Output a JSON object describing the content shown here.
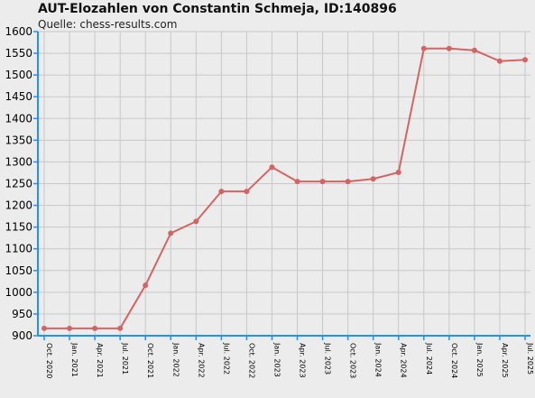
{
  "title": "AUT-Elozahlen von Constantin Schmeja, ID:140896",
  "subtitle": "Quelle: chess-results.com",
  "colors": {
    "line": "#d46464",
    "axis": "#1e90ff",
    "grid": "#c8c8c8",
    "background": "#ececec"
  },
  "chart_data": {
    "type": "line",
    "title": "AUT-Elozahlen von Constantin Schmeja, ID:140896",
    "subtitle": "Quelle: chess-results.com",
    "xlabel": "",
    "ylabel": "",
    "ylim": [
      900,
      1600
    ],
    "ytick_step": 50,
    "grid": true,
    "legend": "none",
    "categories": [
      "Oct. 2020",
      "Jan. 2021",
      "Apr. 2021",
      "Jul. 2021",
      "Oct. 2021",
      "Jan. 2022",
      "Apr. 2022",
      "Jul. 2022",
      "Oct. 2022",
      "Jan. 2023",
      "Apr. 2023",
      "Jul. 2023",
      "Oct. 2023",
      "Jan. 2024",
      "Apr. 2024",
      "Jul. 2024",
      "Oct. 2024",
      "Jan. 2025",
      "Apr. 2025",
      "Jul. 2025"
    ],
    "series": [
      {
        "values": [
          917,
          917,
          917,
          917,
          1016,
          1136,
          1163,
          1232,
          1232,
          1288,
          1255,
          1255,
          1255,
          1261,
          1276,
          1561,
          1561,
          1557,
          1532,
          1535
        ]
      }
    ]
  }
}
